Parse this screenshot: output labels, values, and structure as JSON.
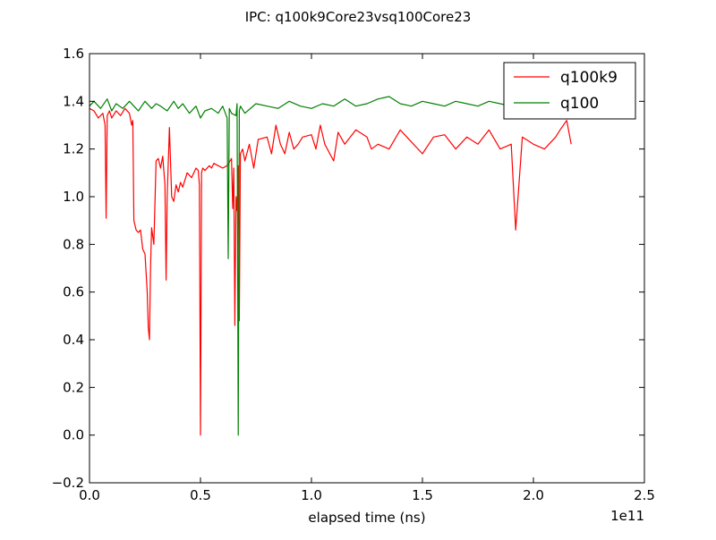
{
  "chart_data": {
    "type": "line",
    "title": "IPC: q100k9Core23vsq100Core23",
    "xlabel": "elapsed time (ns)",
    "ylabel": "",
    "x_offset_text": "1e11",
    "xlim": [
      0.0,
      2.5
    ],
    "ylim": [
      -0.2,
      1.6
    ],
    "xticks": [
      "0.0",
      "0.5",
      "1.0",
      "1.5",
      "2.0",
      "2.5"
    ],
    "yticks": [
      "−0.2",
      "0.0",
      "0.2",
      "0.4",
      "0.6",
      "0.8",
      "1.0",
      "1.2",
      "1.4",
      "1.6"
    ],
    "grid": false,
    "legend_position": "top-right",
    "series": [
      {
        "name": "q100k9",
        "color": "#ff0000",
        "x": [
          0.0,
          0.02,
          0.04,
          0.06,
          0.07,
          0.075,
          0.08,
          0.09,
          0.1,
          0.12,
          0.14,
          0.16,
          0.18,
          0.19,
          0.195,
          0.2,
          0.21,
          0.22,
          0.23,
          0.24,
          0.25,
          0.26,
          0.265,
          0.27,
          0.275,
          0.28,
          0.29,
          0.3,
          0.31,
          0.32,
          0.33,
          0.34,
          0.345,
          0.35,
          0.36,
          0.37,
          0.38,
          0.39,
          0.4,
          0.41,
          0.42,
          0.44,
          0.46,
          0.48,
          0.49,
          0.495,
          0.5,
          0.505,
          0.51,
          0.52,
          0.54,
          0.55,
          0.56,
          0.58,
          0.6,
          0.62,
          0.64,
          0.645,
          0.65,
          0.655,
          0.66,
          0.665,
          0.67,
          0.675,
          0.68,
          0.69,
          0.7,
          0.72,
          0.74,
          0.76,
          0.8,
          0.82,
          0.84,
          0.86,
          0.88,
          0.9,
          0.92,
          0.94,
          0.96,
          1.0,
          1.02,
          1.04,
          1.06,
          1.1,
          1.12,
          1.15,
          1.2,
          1.25,
          1.27,
          1.3,
          1.35,
          1.4,
          1.45,
          1.5,
          1.55,
          1.6,
          1.65,
          1.7,
          1.75,
          1.8,
          1.85,
          1.9,
          1.92,
          1.95,
          2.0,
          2.05,
          2.1,
          2.12,
          2.15,
          2.17
        ],
        "y": [
          1.37,
          1.36,
          1.33,
          1.35,
          1.3,
          0.91,
          1.34,
          1.36,
          1.33,
          1.36,
          1.34,
          1.37,
          1.35,
          1.3,
          1.32,
          0.9,
          0.86,
          0.85,
          0.86,
          0.78,
          0.76,
          0.6,
          0.45,
          0.4,
          0.7,
          0.87,
          0.8,
          1.15,
          1.16,
          1.12,
          1.17,
          1.05,
          0.65,
          1.0,
          1.29,
          1.0,
          0.98,
          1.05,
          1.02,
          1.06,
          1.04,
          1.1,
          1.08,
          1.12,
          1.11,
          1.05,
          0.0,
          1.1,
          1.12,
          1.11,
          1.13,
          1.12,
          1.14,
          1.13,
          1.12,
          1.13,
          1.16,
          0.95,
          1.12,
          0.46,
          1.0,
          0.94,
          1.13,
          0.48,
          1.18,
          1.2,
          1.15,
          1.22,
          1.12,
          1.24,
          1.25,
          1.18,
          1.3,
          1.22,
          1.18,
          1.27,
          1.2,
          1.22,
          1.25,
          1.26,
          1.2,
          1.3,
          1.22,
          1.15,
          1.27,
          1.22,
          1.28,
          1.25,
          1.2,
          1.22,
          1.2,
          1.28,
          1.23,
          1.18,
          1.25,
          1.26,
          1.2,
          1.25,
          1.22,
          1.28,
          1.2,
          1.22,
          0.86,
          1.25,
          1.22,
          1.2,
          1.25,
          1.28,
          1.32,
          1.22
        ]
      },
      {
        "name": "q100",
        "color": "#008000",
        "x": [
          0.0,
          0.02,
          0.05,
          0.08,
          0.1,
          0.12,
          0.15,
          0.18,
          0.2,
          0.22,
          0.25,
          0.28,
          0.3,
          0.32,
          0.35,
          0.38,
          0.4,
          0.42,
          0.45,
          0.48,
          0.5,
          0.52,
          0.55,
          0.58,
          0.6,
          0.62,
          0.625,
          0.63,
          0.64,
          0.66,
          0.665,
          0.67,
          0.675,
          0.68,
          0.7,
          0.75,
          0.8,
          0.85,
          0.9,
          0.95,
          1.0,
          1.05,
          1.1,
          1.15,
          1.2,
          1.25,
          1.3,
          1.35,
          1.4,
          1.45,
          1.5,
          1.55,
          1.6,
          1.65,
          1.7,
          1.75,
          1.8,
          1.85,
          1.9,
          1.95,
          2.0,
          2.05,
          2.1,
          2.15,
          2.17
        ],
        "y": [
          1.38,
          1.4,
          1.37,
          1.41,
          1.36,
          1.39,
          1.37,
          1.4,
          1.38,
          1.36,
          1.4,
          1.37,
          1.39,
          1.38,
          1.36,
          1.4,
          1.37,
          1.39,
          1.35,
          1.38,
          1.33,
          1.36,
          1.37,
          1.35,
          1.38,
          1.33,
          0.74,
          1.37,
          1.35,
          1.34,
          1.39,
          0.0,
          1.36,
          1.38,
          1.35,
          1.39,
          1.38,
          1.37,
          1.4,
          1.38,
          1.37,
          1.39,
          1.38,
          1.41,
          1.38,
          1.39,
          1.41,
          1.42,
          1.39,
          1.38,
          1.4,
          1.39,
          1.38,
          1.4,
          1.39,
          1.38,
          1.4,
          1.39,
          1.38,
          1.39,
          1.4,
          1.38,
          1.39,
          1.4,
          1.38
        ]
      }
    ]
  }
}
